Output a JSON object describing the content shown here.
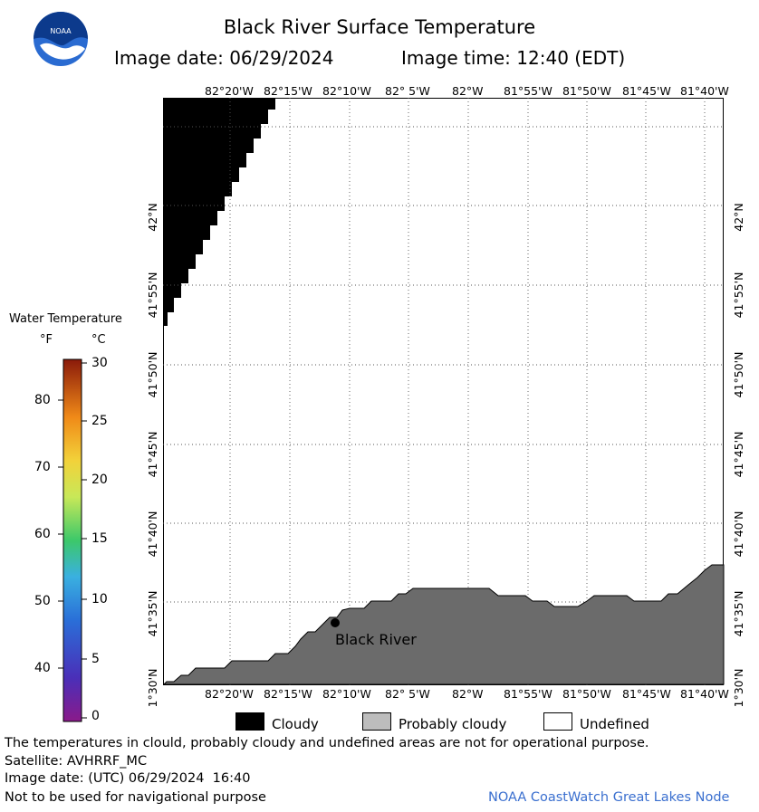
{
  "header": {
    "title": "Black River Surface Temperature",
    "image_date": "Image date: 06/29/2024",
    "image_time": "Image time: 12:40 (EDT)",
    "logo_text": "NOAA"
  },
  "map": {
    "lon_labels": [
      "82°20'W",
      "82°15'W",
      "82°10'W",
      "82° 5'W",
      "82°W",
      "81°55'W",
      "81°50'W",
      "81°45'W",
      "81°40'W"
    ],
    "lat_labels": [
      "42°N",
      "41°55'N",
      "41°50'N",
      "41°45'N",
      "41°40'N",
      "41°35'N",
      "41°30'N"
    ],
    "place_label": "Black River",
    "colors": {
      "cloudy": "#000000",
      "land": "#6b6b6b",
      "water_undefined": "#ffffff"
    }
  },
  "colorbar": {
    "title": "Water Temperature",
    "unit_f": "°F",
    "unit_c": "°C",
    "f_ticks": [
      "80",
      "70",
      "60",
      "50",
      "40"
    ],
    "c_ticks": [
      "30",
      "25",
      "20",
      "15",
      "10",
      "5",
      "0"
    ]
  },
  "legend": {
    "cloudy": "Cloudy",
    "probably_cloudy": "Probably cloudy",
    "undefined": "Undefined"
  },
  "footer": {
    "disclaimer": "The temperatures in clould, probably cloudy and undefined areas are not for operational purpose.",
    "satellite": "Satellite: AVHRRF_MC",
    "utc_date": "Image date: (UTC) 06/29/2024  16:40",
    "navigation": "Not to be used for navigational purpose",
    "credit": "NOAA CoastWatch Great Lakes Node"
  }
}
